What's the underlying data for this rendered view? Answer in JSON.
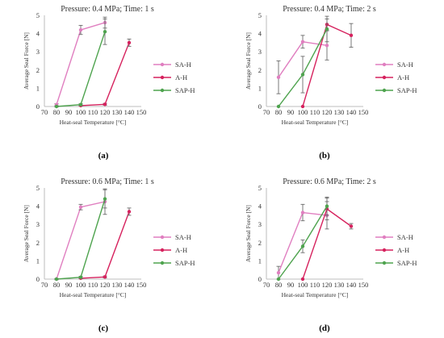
{
  "colors": {
    "SA-H": "#e07fc0",
    "A-H": "#d6225e",
    "SAP-H": "#4ea34e",
    "error": "#6b6b6b",
    "axis": "#bdbdbd"
  },
  "chart_data": [
    {
      "type": "line",
      "panel": "(a)",
      "title": "Pressure: 0.4 MPa; Time: 1 s",
      "xlabel": "Heat-seal Temperature [°C]",
      "ylabel": "Average Seal Force [N]",
      "xlim": [
        70,
        150
      ],
      "ylim": [
        0,
        5
      ],
      "xticks": [
        70,
        80,
        90,
        100,
        110,
        120,
        130,
        140,
        150
      ],
      "yticks": [
        0,
        1,
        2,
        3,
        4,
        5
      ],
      "legend_position": "right",
      "series": [
        {
          "name": "SA-H",
          "x": [
            80,
            100,
            120
          ],
          "y": [
            0.1,
            4.2,
            4.6
          ],
          "err": [
            0.05,
            0.25,
            0.3
          ]
        },
        {
          "name": "A-H",
          "x": [
            100,
            120,
            140
          ],
          "y": [
            0.05,
            0.12,
            3.5
          ],
          "err": [
            0.03,
            0.05,
            0.2
          ]
        },
        {
          "name": "SAP-H",
          "x": [
            80,
            100,
            120
          ],
          "y": [
            0.0,
            0.1,
            4.1
          ],
          "err": [
            0.03,
            0.05,
            0.7
          ]
        }
      ]
    },
    {
      "type": "line",
      "panel": "(b)",
      "title": "Pressure: 0.4 MPa; Time: 2 s",
      "xlabel": "Heat-seal Temperature [°C]",
      "ylabel": "Average Seal Force [N]",
      "xlim": [
        70,
        150
      ],
      "ylim": [
        0,
        5
      ],
      "xticks": [
        70,
        80,
        90,
        100,
        110,
        120,
        130,
        140,
        150
      ],
      "yticks": [
        0,
        1,
        2,
        3,
        4,
        5
      ],
      "legend_position": "right",
      "series": [
        {
          "name": "SA-H",
          "x": [
            80,
            100,
            120
          ],
          "y": [
            1.6,
            3.55,
            3.35
          ],
          "err": [
            0.9,
            0.35,
            0.8
          ]
        },
        {
          "name": "A-H",
          "x": [
            100,
            120,
            140
          ],
          "y": [
            0.0,
            4.5,
            3.9
          ],
          "err": [
            0.0,
            0.3,
            0.65
          ]
        },
        {
          "name": "SAP-H",
          "x": [
            80,
            100,
            120
          ],
          "y": [
            0.0,
            1.75,
            4.25
          ],
          "err": [
            0.0,
            1.0,
            0.7
          ]
        }
      ]
    },
    {
      "type": "line",
      "panel": "(c)",
      "title": "Pressure: 0.6 MPa; Time: 1 s",
      "xlabel": "Heat-seal Temperature [°C]",
      "ylabel": "Average Seal Force [N]",
      "xlim": [
        70,
        150
      ],
      "ylim": [
        0,
        5
      ],
      "xticks": [
        70,
        80,
        90,
        100,
        110,
        120,
        130,
        140,
        150
      ],
      "yticks": [
        0,
        1,
        2,
        3,
        4,
        5
      ],
      "legend_position": "right",
      "series": [
        {
          "name": "SA-H",
          "x": [
            80,
            100,
            120
          ],
          "y": [
            0.0,
            3.95,
            4.25
          ],
          "err": [
            0.03,
            0.15,
            0.7
          ]
        },
        {
          "name": "A-H",
          "x": [
            100,
            120,
            140
          ],
          "y": [
            0.05,
            0.12,
            3.7
          ],
          "err": [
            0.03,
            0.05,
            0.2
          ]
        },
        {
          "name": "SAP-H",
          "x": [
            80,
            100,
            120
          ],
          "y": [
            0.0,
            0.1,
            4.4
          ],
          "err": [
            0.03,
            0.05,
            0.5
          ]
        }
      ]
    },
    {
      "type": "line",
      "panel": "(d)",
      "title": "Pressure: 0.6 MPa; Time: 2 s",
      "xlabel": "Heat-seal Temperature [°C]",
      "ylabel": "Average Seal Force [N]",
      "xlim": [
        70,
        150
      ],
      "ylim": [
        0,
        5
      ],
      "xticks": [
        70,
        80,
        90,
        100,
        110,
        120,
        130,
        140,
        150
      ],
      "yticks": [
        0,
        1,
        2,
        3,
        4,
        5
      ],
      "legend_position": "right",
      "series": [
        {
          "name": "SA-H",
          "x": [
            80,
            100,
            120
          ],
          "y": [
            0.35,
            3.65,
            3.5
          ],
          "err": [
            0.35,
            0.45,
            0.75
          ]
        },
        {
          "name": "A-H",
          "x": [
            100,
            120,
            140
          ],
          "y": [
            0.0,
            3.85,
            2.9
          ],
          "err": [
            0.0,
            0.6,
            0.15
          ]
        },
        {
          "name": "SAP-H",
          "x": [
            80,
            100,
            120
          ],
          "y": [
            0.0,
            1.8,
            4.0
          ],
          "err": [
            0.0,
            0.35,
            0.5
          ]
        }
      ]
    }
  ]
}
